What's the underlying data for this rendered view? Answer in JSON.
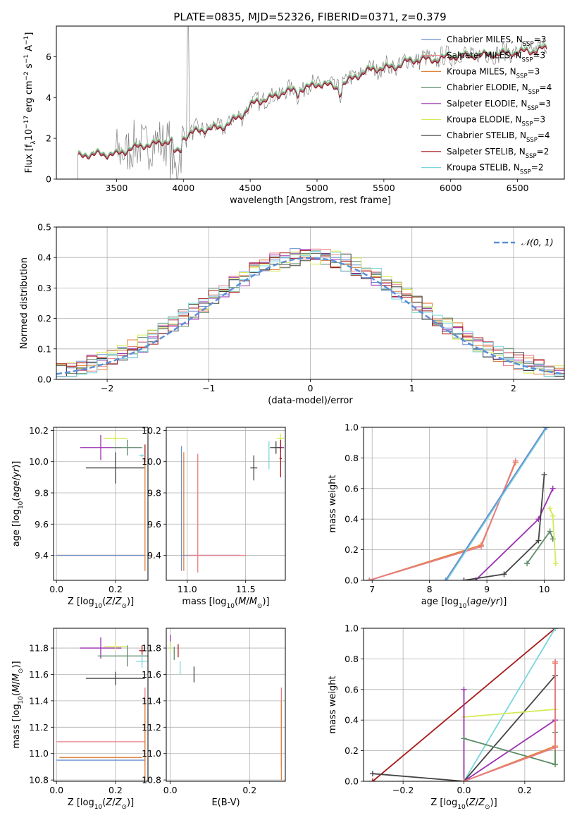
{
  "figure_title": "PLATE=0835, MJD=52326, FIBERID=0371, z=0.379",
  "colors": {
    "chabrier_miles": "#6a8fd1",
    "salpeter_miles": "#e87d86",
    "kroupa_miles": "#e0823a",
    "chabrier_elodie": "#5d8a68",
    "salpeter_elodie": "#9a2fb0",
    "kroupa_elodie": "#d6ea58",
    "chabrier_stelib": "#444444",
    "salpeter_stelib": "#a81b1b",
    "kroupa_stelib": "#7ad6de",
    "data": "#7f7f7f",
    "normal_curve": "#5b8fd9"
  },
  "chart_data": [
    {
      "id": "spectrum",
      "type": "line",
      "title": "PLATE=0835, MJD=52326, FIBERID=0371, z=0.379",
      "xlabel": "wavelength [Angstrom, rest frame]",
      "ylabel": "Flux [f$_\\lambda$ 10$^{-17}$ erg cm$^{-2}$ s$^{-1}$ A$^{-1}$]",
      "ylabel_parts": {
        "main": "Flux [f",
        "sub1": "λ",
        "mid": "10",
        "sup1": "−17",
        "unit1": " erg cm",
        "sup2": "−2",
        "unit2": " s",
        "sup3": "−1",
        "unit3": " A",
        "sup4": "−1",
        "end": "]"
      },
      "xlim": [
        3050,
        6850
      ],
      "ylim": [
        0,
        7.5
      ],
      "xticks": [
        3500,
        4000,
        4500,
        5000,
        5500,
        6000,
        6500
      ],
      "yticks": [
        0,
        2,
        4,
        6
      ],
      "continuum": {
        "x": [
          3210,
          3280,
          3350,
          3450,
          3500,
          3600,
          3700,
          3800,
          3900,
          3950,
          4050,
          4150,
          4250,
          4350,
          4450,
          4550,
          4650,
          4750,
          4850,
          4950,
          5050,
          5150,
          5250,
          5350,
          5450,
          5550,
          5650,
          5750,
          5850,
          5950,
          6050,
          6150,
          6250,
          6350,
          6450,
          6550,
          6650,
          6720
        ],
        "y": [
          1.1,
          1.3,
          1.25,
          1.3,
          1.25,
          1.55,
          1.7,
          1.8,
          1.95,
          1.85,
          2.3,
          2.5,
          2.55,
          2.8,
          3.3,
          3.9,
          4.0,
          4.35,
          4.4,
          4.6,
          4.75,
          4.5,
          4.95,
          5.3,
          5.5,
          5.5,
          5.75,
          5.95,
          5.9,
          6.0,
          6.1,
          6.1,
          6.15,
          6.2,
          6.25,
          6.3,
          6.4,
          6.45
        ]
      },
      "series": [
        {
          "name": "Chabrier MILES, N$_{SSP}$=3",
          "label": "Chabrier MILES, N",
          "sub": "SSP",
          "suffix": "=3",
          "color_key": "chabrier_miles",
          "offset": 0.02
        },
        {
          "name": "Salpeter MILES, N$_{SSP}$=3",
          "label": "Salpeter MILES, N",
          "sub": "SSP",
          "suffix": "=3",
          "color_key": "salpeter_miles",
          "offset": -0.02
        },
        {
          "name": "Kroupa MILES, N$_{SSP}$=3",
          "label": "Kroupa MILES, N",
          "sub": "SSP",
          "suffix": "=3",
          "color_key": "kroupa_miles",
          "offset": 0.0
        },
        {
          "name": "Chabrier ELODIE, N$_{SSP}$=4",
          "label": "Chabrier ELODIE, N",
          "sub": "SSP",
          "suffix": "=4",
          "color_key": "chabrier_elodie",
          "offset": 0.04
        },
        {
          "name": "Salpeter ELODIE, N$_{SSP}$=3",
          "label": "Salpeter ELODIE, N",
          "sub": "SSP",
          "suffix": "=3",
          "color_key": "salpeter_elodie",
          "offset": -0.04
        },
        {
          "name": "Kroupa ELODIE, N$_{SSP}$=3",
          "label": "Kroupa ELODIE, N",
          "sub": "SSP",
          "suffix": "=3",
          "color_key": "kroupa_elodie",
          "offset": 0.08
        },
        {
          "name": "Chabrier STELIB, N$_{SSP}$=4",
          "label": "Chabrier STELIB, N",
          "sub": "SSP",
          "suffix": "=4",
          "color_key": "chabrier_stelib",
          "offset": -0.06
        },
        {
          "name": "Salpeter STELIB, N$_{SSP}$=2",
          "label": "Salpeter STELIB, N",
          "sub": "SSP",
          "suffix": "=2",
          "color_key": "salpeter_stelib",
          "offset": -0.08
        },
        {
          "name": "Kroupa STELIB, N$_{SSP}$=2",
          "label": "Kroupa STELIB, N",
          "sub": "SSP",
          "suffix": "=2",
          "color_key": "kroupa_stelib",
          "offset": 0.06
        }
      ],
      "legend_position": "upper-right"
    },
    {
      "id": "residuals",
      "type": "histogram",
      "xlabel": "(data-model)/error",
      "ylabel": "Normed distribution",
      "xlim": [
        -2.5,
        2.5
      ],
      "ylim": [
        0,
        0.5
      ],
      "xticks": [
        -2,
        -1,
        0,
        1,
        2
      ],
      "yticks": [
        0.0,
        0.1,
        0.2,
        0.3,
        0.4,
        0.5
      ],
      "bin_width": 0.1,
      "reference_label": "$\\mathcal{N}(0,1)$",
      "reference_text": "𝒩(0, 1)",
      "legend_position": "upper-right"
    },
    {
      "id": "age_vs_Z",
      "type": "errorbar",
      "xlabel": "Z [log$_{10}$(Z/Z$_\\odot$)]",
      "ylabel": "age  [log$_{10}$(age/yr)]",
      "xlim": [
        -0.01,
        0.31
      ],
      "ylim": [
        9.24,
        10.22
      ],
      "xticks": [
        0.0,
        0.2
      ],
      "yticks": [
        9.4,
        9.6,
        9.8,
        10.0,
        10.2
      ],
      "points": [
        {
          "color_key": "kroupa_elodie",
          "x": 0.2,
          "xerr": 0.04,
          "y": 10.15,
          "yerr": 0.03
        },
        {
          "color_key": "salpeter_elodie",
          "x": 0.15,
          "xerr": 0.07,
          "y": 10.09,
          "yerr": 0.08
        },
        {
          "color_key": "chabrier_elodie",
          "x": 0.24,
          "xerr": 0.05,
          "y": 10.09,
          "yerr": 0.05
        },
        {
          "color_key": "chabrier_stelib",
          "x": 0.2,
          "xerr": 0.1,
          "y": 9.96,
          "yerr": 0.1
        },
        {
          "color_key": "salpeter_stelib",
          "x": 0.3,
          "xerr": 0.0,
          "y": 10.05,
          "yerr": 0.06
        },
        {
          "color_key": "kroupa_stelib",
          "x": 0.29,
          "xerr": 0.01,
          "y": 10.04,
          "yerr": 0.01
        },
        {
          "color_key": "kroupa_miles",
          "x": 0.15,
          "xerr": 0.15,
          "y": 9.4,
          "yerr": 0.0
        },
        {
          "color_key": "chabrier_miles",
          "x": 0.15,
          "xerr": 0.15,
          "y": 9.4,
          "yerr": 0.0
        },
        {
          "color_key": "kroupa_miles",
          "x": 0.3,
          "xerr": 0.0,
          "y": 9.65,
          "yerr": 0.35
        }
      ]
    },
    {
      "id": "age_vs_mass",
      "type": "errorbar",
      "xlabel": "mass [log$_{10}$(M/M$_\\odot$)]",
      "xlim": [
        10.82,
        11.84
      ],
      "ylim": [
        9.24,
        10.22
      ],
      "xticks": [
        11.0,
        11.5
      ],
      "yticks": [
        9.4,
        9.6,
        9.8,
        10.0,
        10.2
      ],
      "points": [
        {
          "color_key": "kroupa_elodie",
          "x": 11.8,
          "xerr": 0.03,
          "y": 10.15,
          "yerr": 0.03
        },
        {
          "color_key": "salpeter_elodie",
          "x": 11.8,
          "xerr": 0.03,
          "y": 10.09,
          "yerr": 0.03
        },
        {
          "color_key": "chabrier_stelib",
          "x": 11.76,
          "xerr": 0.05,
          "y": 10.09,
          "yerr": 0.04
        },
        {
          "color_key": "salpeter_stelib",
          "x": 11.8,
          "xerr": 0.01,
          "y": 10.02,
          "yerr": 0.12
        },
        {
          "color_key": "chabrier_stelib",
          "x": 11.57,
          "xerr": 0.03,
          "y": 9.96,
          "yerr": 0.08
        },
        {
          "color_key": "kroupa_stelib",
          "x": 11.7,
          "xerr": 0.0,
          "y": 10.04,
          "yerr": 0.09
        },
        {
          "color_key": "chabrier_miles",
          "x": 11.2,
          "xerr": 0.25,
          "y": 9.4,
          "yerr": 0.0
        },
        {
          "color_key": "chabrier_miles",
          "x": 10.95,
          "xerr": 0.0,
          "y": 9.7,
          "yerr": 0.4
        },
        {
          "color_key": "kroupa_miles",
          "x": 10.97,
          "xerr": 0.0,
          "y": 9.68,
          "yerr": 0.38
        },
        {
          "color_key": "salpeter_miles",
          "x": 11.09,
          "xerr": 0.0,
          "y": 9.67,
          "yerr": 0.38
        },
        {
          "color_key": "salpeter_miles",
          "x": 11.25,
          "xerr": 0.25,
          "y": 9.4,
          "yerr": 0.0
        }
      ]
    },
    {
      "id": "weight_vs_age",
      "type": "line",
      "xlabel": "age  [log$_{10}$(age/yr)]",
      "ylabel": "mass weight",
      "xlim": [
        6.85,
        10.35
      ],
      "ylim": [
        0,
        1
      ],
      "xticks": [
        7,
        8,
        9,
        10
      ],
      "yticks": [
        0.0,
        0.2,
        0.4,
        0.6,
        0.8,
        1.0
      ],
      "series": [
        {
          "color_key": "kroupa_miles",
          "x": [
            6.95,
            8.9,
            9.5
          ],
          "y": [
            0.0,
            0.23,
            0.77
          ]
        },
        {
          "color_key": "salpeter_miles",
          "x": [
            6.95,
            8.9,
            9.5
          ],
          "y": [
            0.0,
            0.22,
            0.78
          ]
        },
        {
          "color_key": "kroupa_stelib",
          "x": [
            8.3,
            10.05
          ],
          "y": [
            0.0,
            1.0
          ]
        },
        {
          "color_key": "chabrier_miles",
          "x": [
            8.28,
            10.03
          ],
          "y": [
            0.0,
            1.0
          ]
        },
        {
          "color_key": "salpeter_elodie",
          "x": [
            8.8,
            9.9,
            10.15
          ],
          "y": [
            0.0,
            0.4,
            0.6
          ]
        },
        {
          "color_key": "chabrier_stelib",
          "x": [
            8.6,
            9.3,
            9.9,
            10.0
          ],
          "y": [
            0.0,
            0.04,
            0.26,
            0.69
          ]
        },
        {
          "color_key": "chabrier_elodie",
          "x": [
            9.7,
            10.1,
            10.15
          ],
          "y": [
            0.11,
            0.32,
            0.27
          ]
        },
        {
          "color_key": "kroupa_elodie",
          "x": [
            10.1,
            10.15,
            10.2
          ],
          "y": [
            0.47,
            0.42,
            0.11
          ]
        }
      ]
    },
    {
      "id": "mass_vs_Z",
      "type": "errorbar",
      "xlabel": "Z [log$_{10}$(Z/Z$_\\odot$)]",
      "ylabel": "mass [log$_{10}$(M/M$_\\odot$)]",
      "xlim": [
        -0.01,
        0.31
      ],
      "ylim": [
        10.79,
        11.95
      ],
      "xticks": [
        0.0,
        0.2
      ],
      "yticks": [
        10.8,
        11.0,
        11.2,
        11.4,
        11.6,
        11.8
      ],
      "points": [
        {
          "color_key": "salpeter_elodie",
          "x": 0.15,
          "xerr": 0.07,
          "y": 11.8,
          "yerr": 0.08
        },
        {
          "color_key": "kroupa_elodie",
          "x": 0.2,
          "xerr": 0.04,
          "y": 11.81,
          "yerr": 0.03
        },
        {
          "color_key": "chabrier_elodie",
          "x": 0.24,
          "xerr": 0.1,
          "y": 11.74,
          "yerr": 0.08
        },
        {
          "color_key": "salpeter_stelib",
          "x": 0.29,
          "xerr": 0.01,
          "y": 11.78,
          "yerr": 0.04
        },
        {
          "color_key": "kroupa_stelib",
          "x": 0.29,
          "xerr": 0.02,
          "y": 11.7,
          "yerr": 0.05
        },
        {
          "color_key": "chabrier_stelib",
          "x": 0.2,
          "xerr": 0.1,
          "y": 11.57,
          "yerr": 0.05
        },
        {
          "color_key": "salpeter_miles",
          "x": 0.15,
          "xerr": 0.15,
          "y": 11.09,
          "yerr": 0.0
        },
        {
          "color_key": "kroupa_miles",
          "x": 0.15,
          "xerr": 0.14,
          "y": 10.97,
          "yerr": 0.0
        },
        {
          "color_key": "chabrier_miles",
          "x": 0.15,
          "xerr": 0.15,
          "y": 10.95,
          "yerr": 0.0
        },
        {
          "color_key": "salpeter_miles",
          "x": 0.3,
          "xerr": 0.0,
          "y": 11.2,
          "yerr": 0.3
        },
        {
          "color_key": "kroupa_miles",
          "x": 0.3,
          "xerr": 0.0,
          "y": 11.1,
          "yerr": 0.3
        }
      ]
    },
    {
      "id": "mass_vs_EBV",
      "type": "errorbar",
      "xlabel": "E(B-V)",
      "xlim": [
        -0.01,
        0.29
      ],
      "ylim": [
        10.79,
        11.95
      ],
      "xticks": [
        0.0,
        0.2
      ],
      "yticks": [
        10.8,
        11.0,
        11.2,
        11.4,
        11.6,
        11.8
      ],
      "points": [
        {
          "color_key": "salpeter_elodie",
          "x": 0.0,
          "xerr": 0.0,
          "y": 11.85,
          "yerr": 0.05
        },
        {
          "color_key": "kroupa_elodie",
          "x": 0.0,
          "xerr": 0.0,
          "y": 11.81,
          "yerr": 0.04
        },
        {
          "color_key": "chabrier_elodie",
          "x": 0.01,
          "xerr": 0.0,
          "y": 11.76,
          "yerr": 0.05
        },
        {
          "color_key": "salpeter_stelib",
          "x": 0.02,
          "xerr": 0.0,
          "y": 11.78,
          "yerr": 0.05
        },
        {
          "color_key": "kroupa_stelib",
          "x": 0.025,
          "xerr": 0.0,
          "y": 11.65,
          "yerr": 0.05
        },
        {
          "color_key": "chabrier_stelib",
          "x": 0.06,
          "xerr": 0.0,
          "y": 11.6,
          "yerr": 0.06
        },
        {
          "color_key": "salpeter_miles",
          "x": 0.28,
          "xerr": 0.0,
          "y": 11.2,
          "yerr": 0.3
        },
        {
          "color_key": "kroupa_miles",
          "x": 0.28,
          "xerr": 0.0,
          "y": 11.1,
          "yerr": 0.3
        }
      ]
    },
    {
      "id": "weight_vs_Z",
      "type": "line",
      "xlabel": "Z [log$_{10}$(Z/Z$_\\odot$)]",
      "ylabel": "mass weight",
      "xlim": [
        -0.33,
        0.33
      ],
      "ylim": [
        0,
        1
      ],
      "xticks": [
        -0.2,
        0.0,
        0.2
      ],
      "yticks": [
        0.0,
        0.2,
        0.4,
        0.6,
        0.8,
        1.0
      ],
      "series": [
        {
          "color_key": "salpeter_stelib",
          "x": [
            -0.3,
            0.3
          ],
          "y": [
            0.0,
            1.0
          ]
        },
        {
          "color_key": "kroupa_stelib",
          "x": [
            0.0,
            0.3
          ],
          "y": [
            0.0,
            1.0
          ]
        },
        {
          "color_key": "chabrier_stelib",
          "x": [
            -0.3,
            0.0,
            0.3
          ],
          "y": [
            0.05,
            0.0,
            0.69
          ]
        },
        {
          "color_key": "kroupa_elodie",
          "x": [
            0.0,
            0.3,
            0.3
          ],
          "y": [
            0.42,
            0.47,
            0.11
          ]
        },
        {
          "color_key": "salpeter_elodie",
          "x": [
            0.0,
            0.0,
            0.3,
            0.3
          ],
          "y": [
            0.6,
            0.0,
            0.4,
            0.78
          ]
        },
        {
          "color_key": "chabrier_elodie",
          "x": [
            0.0,
            0.3,
            0.3
          ],
          "y": [
            0.28,
            0.11,
            0.32
          ]
        },
        {
          "color_key": "kroupa_miles",
          "x": [
            0.0,
            0.3,
            0.3
          ],
          "y": [
            0.0,
            0.23,
            0.77
          ]
        },
        {
          "color_key": "salpeter_miles",
          "x": [
            0.0,
            0.3,
            0.3
          ],
          "y": [
            0.0,
            0.22,
            0.78
          ]
        }
      ]
    }
  ]
}
